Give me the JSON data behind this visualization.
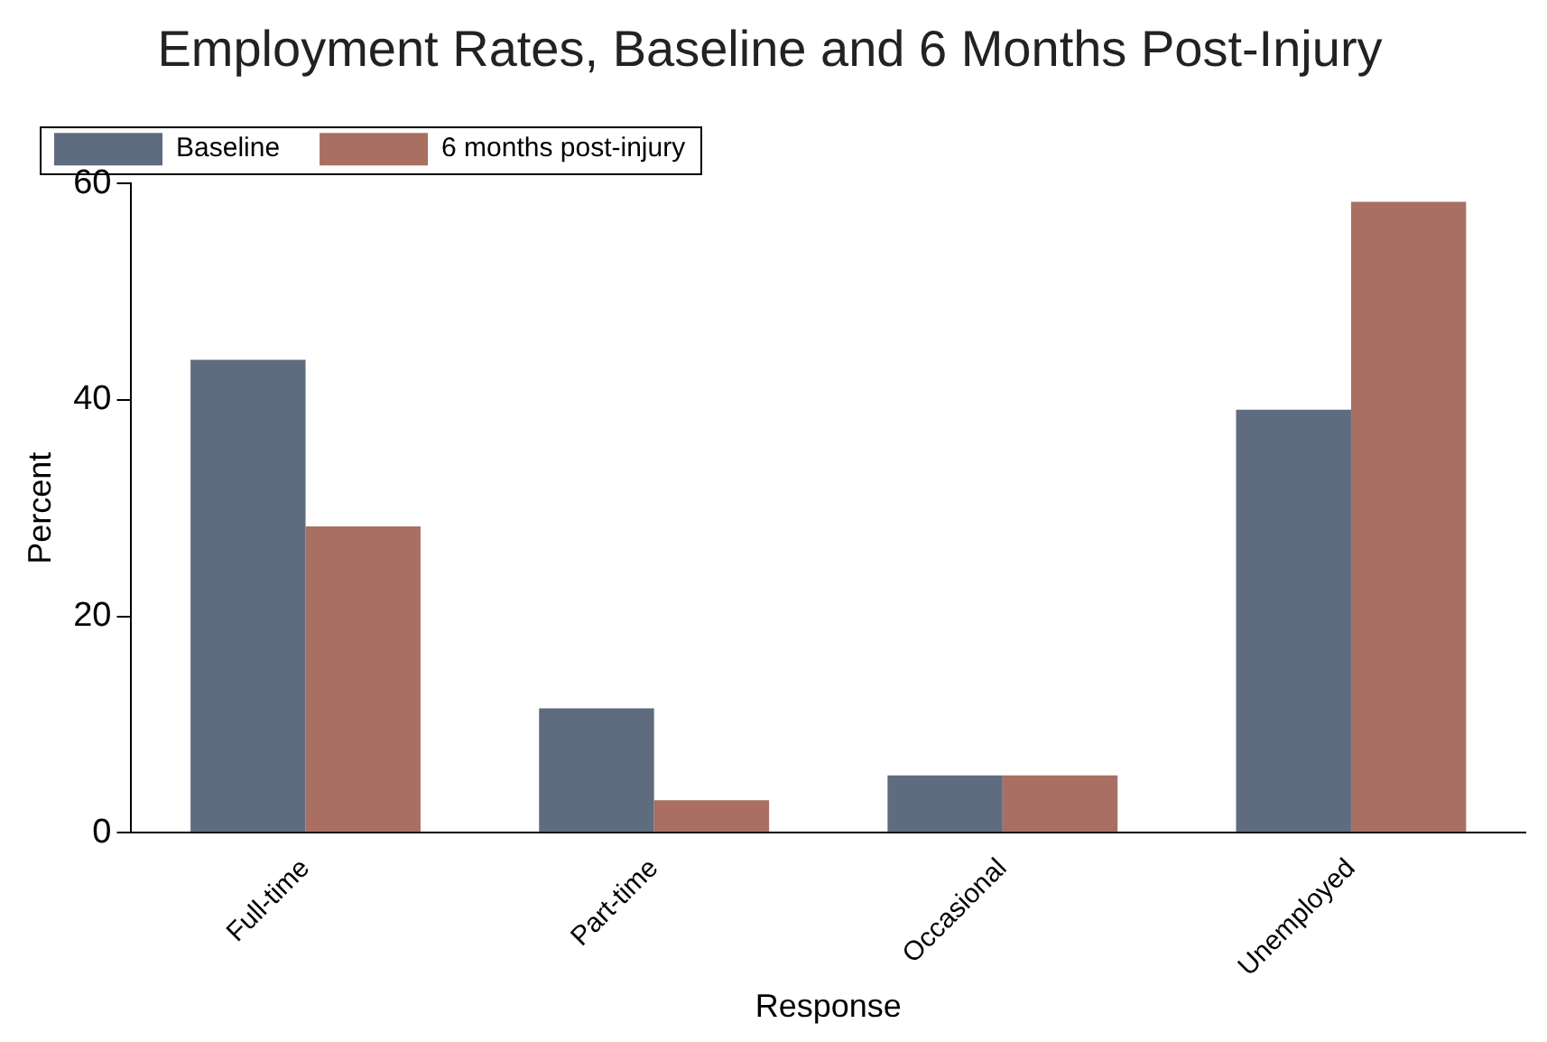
{
  "chart_data": {
    "type": "bar",
    "title": "Employment Rates, Baseline and 6 Months Post-Injury",
    "xlabel": "Response",
    "ylabel": "Percent",
    "categories": [
      "Full-time",
      "Part-time",
      "Occasional",
      "Unemployed"
    ],
    "series": [
      {
        "name": "Baseline",
        "color": "#5f6b7f",
        "values": [
          43.7,
          11.5,
          5.3,
          39.1
        ]
      },
      {
        "name": "6 months post-injury",
        "color": "#a86f62",
        "values": [
          28.3,
          3.0,
          5.3,
          58.3
        ]
      }
    ],
    "ylim": [
      0,
      60
    ],
    "yticks": [
      0,
      20,
      40,
      60
    ],
    "grid": false,
    "legend": "top left"
  }
}
